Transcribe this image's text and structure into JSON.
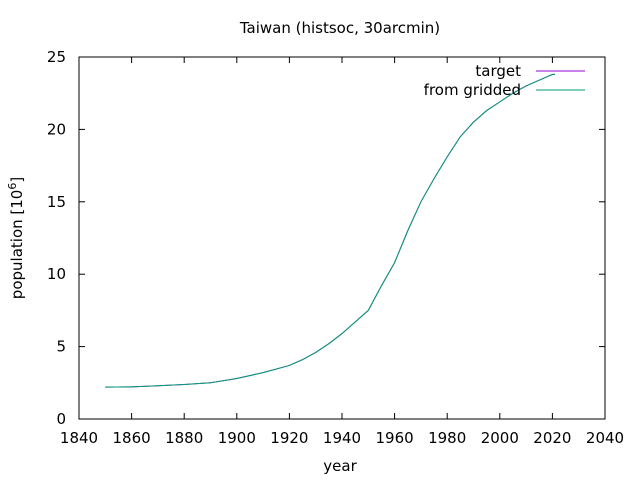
{
  "chart_data": {
    "type": "line",
    "title": "Taiwan (histsoc, 30arcmin)",
    "xlabel": "year",
    "ylabel": "population [10",
    "ylabel_sup": "6",
    "ylabel_close": "]",
    "xlim": [
      1840,
      2040
    ],
    "ylim": [
      0,
      25
    ],
    "xticks": [
      1840,
      1860,
      1880,
      1900,
      1920,
      1940,
      1960,
      1980,
      2000,
      2020,
      2040
    ],
    "yticks": [
      0,
      5,
      10,
      15,
      20,
      25
    ],
    "grid": false,
    "legend_position": "top-right",
    "series": [
      {
        "name": "target",
        "color": "#9400d3",
        "x": [
          1850,
          1860,
          1870,
          1880,
          1890,
          1900,
          1910,
          1920,
          1925,
          1930,
          1935,
          1940,
          1945,
          1950,
          1955,
          1960,
          1965,
          1970,
          1975,
          1980,
          1985,
          1990,
          1995,
          2000,
          2005,
          2010,
          2015,
          2020,
          2021
        ],
        "y": [
          2.2,
          2.22,
          2.3,
          2.38,
          2.5,
          2.8,
          3.2,
          3.7,
          4.1,
          4.6,
          5.2,
          5.9,
          6.7,
          7.5,
          9.2,
          10.8,
          13.0,
          15.0,
          16.6,
          18.1,
          19.5,
          20.5,
          21.3,
          21.9,
          22.5,
          23.0,
          23.4,
          23.8,
          23.8
        ]
      },
      {
        "name": "from gridded",
        "color": "#009e73",
        "x": [
          1850,
          1860,
          1870,
          1880,
          1890,
          1900,
          1910,
          1920,
          1925,
          1930,
          1935,
          1940,
          1945,
          1950,
          1955,
          1960,
          1965,
          1970,
          1975,
          1980,
          1985,
          1990,
          1995,
          2000,
          2005,
          2010,
          2015,
          2020,
          2021
        ],
        "y": [
          2.2,
          2.22,
          2.3,
          2.38,
          2.5,
          2.8,
          3.2,
          3.7,
          4.1,
          4.6,
          5.2,
          5.9,
          6.7,
          7.5,
          9.2,
          10.8,
          13.0,
          15.0,
          16.6,
          18.1,
          19.5,
          20.5,
          21.3,
          21.9,
          22.5,
          23.0,
          23.4,
          23.8,
          23.8
        ]
      }
    ]
  }
}
